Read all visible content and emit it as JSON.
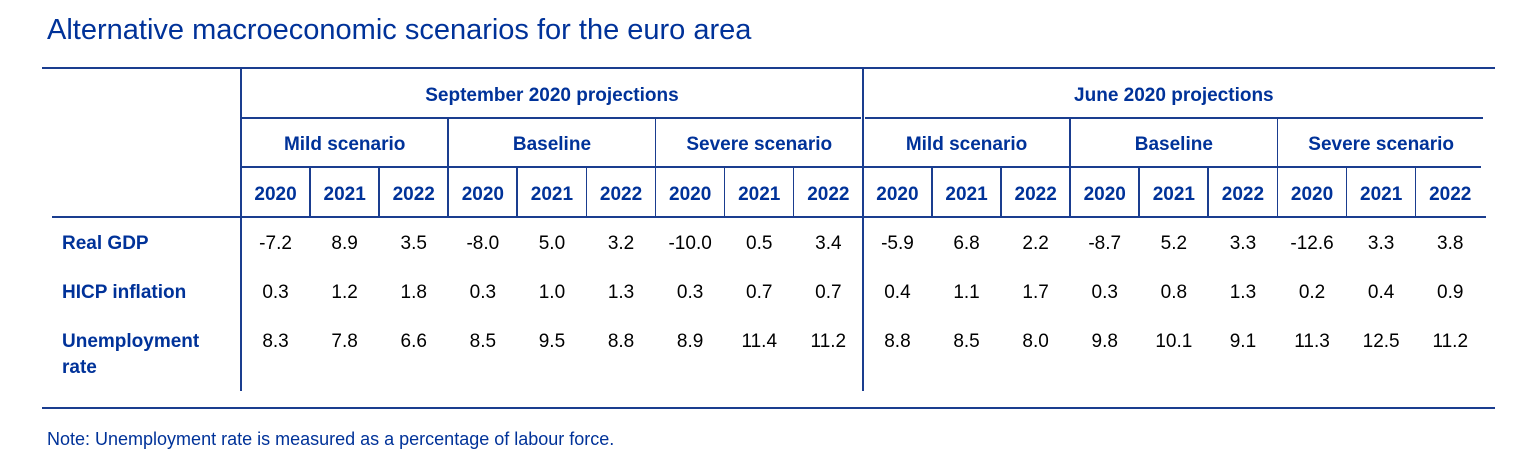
{
  "title": "Alternative macroeconomic scenarios for the euro area",
  "projection_groups": [
    "September 2020 projections",
    "June 2020 projections"
  ],
  "scenarios": [
    "Mild scenario",
    "Baseline",
    "Severe scenario",
    "Mild scenario",
    "Baseline",
    "Severe scenario"
  ],
  "years": [
    "2020",
    "2021",
    "2022",
    "2020",
    "2021",
    "2022",
    "2020",
    "2021",
    "2022",
    "2020",
    "2021",
    "2022",
    "2020",
    "2021",
    "2022",
    "2020",
    "2021",
    "2022"
  ],
  "rows": [
    {
      "label": "Real GDP",
      "values": [
        "-7.2",
        "8.9",
        "3.5",
        "-8.0",
        "5.0",
        "3.2",
        "-10.0",
        "0.5",
        "3.4",
        "-5.9",
        "6.8",
        "2.2",
        "-8.7",
        "5.2",
        "3.3",
        "-12.6",
        "3.3",
        "3.8"
      ]
    },
    {
      "label": "HICP inflation",
      "values": [
        "0.3",
        "1.2",
        "1.8",
        "0.3",
        "1.0",
        "1.3",
        "0.3",
        "0.7",
        "0.7",
        "0.4",
        "1.1",
        "1.7",
        "0.3",
        "0.8",
        "1.3",
        "0.2",
        "0.4",
        "0.9"
      ]
    },
    {
      "label": "Unemployment rate",
      "values": [
        "8.3",
        "7.8",
        "6.6",
        "8.5",
        "9.5",
        "8.8",
        "8.9",
        "11.4",
        "11.2",
        "8.8",
        "8.5",
        "8.0",
        "9.8",
        "10.1",
        "9.1",
        "11.3",
        "12.5",
        "11.2"
      ]
    }
  ],
  "note": "Note: Unemployment rate is measured as a percentage of labour force."
}
